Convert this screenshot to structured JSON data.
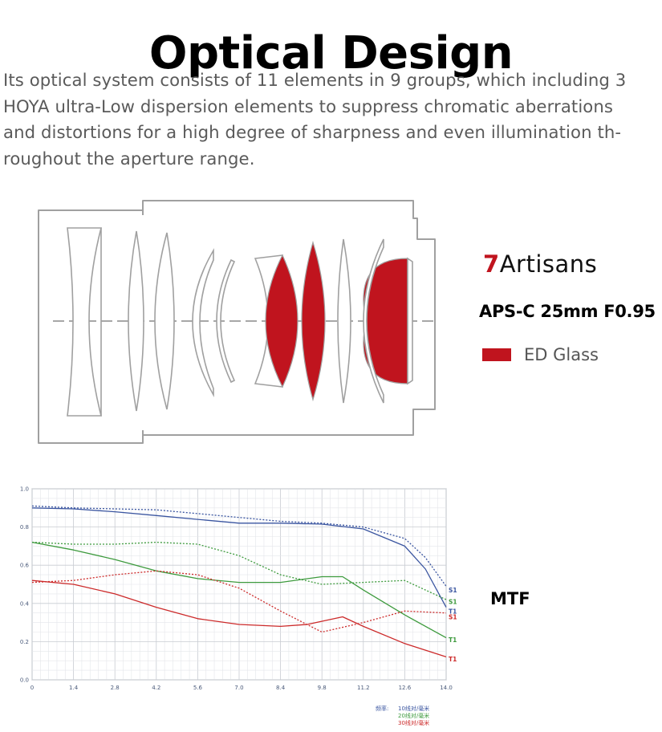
{
  "header": {
    "title": "Optical Design",
    "intro_lines": [
      "Its optical system consists of 11 elements in 9 groups, which including 3",
      "HOYA ultra-Low dispersion elements to suppress chromatic aberrations",
      "and distortions for a high degree of sharpness and even illumination th-",
      "roughout the aperture range."
    ]
  },
  "brand": {
    "numeral": "7",
    "name": "Artisans"
  },
  "lens": {
    "model": "APS-C 25mm F0.95",
    "legend_label": "ED Glass",
    "ed_color": "#c0141e",
    "outline_color": "#9a9a9a"
  },
  "mtf": {
    "label": "MTF",
    "footer_prefix": "频率:",
    "footer_items": [
      {
        "text": "10线对/毫米",
        "color": "#3a55a0"
      },
      {
        "text": "20线对/毫米",
        "color": "#3d9a3d"
      },
      {
        "text": "30线对/毫米",
        "color": "#cc2a2a"
      }
    ]
  },
  "chart_data": {
    "type": "line",
    "xlim": [
      0,
      14.0
    ],
    "ylim": [
      0,
      1.0
    ],
    "x_ticks": [
      "0",
      "1.4",
      "2.8",
      "4.2",
      "5.6",
      "7.0",
      "8.4",
      "9.8",
      "11.2",
      "12.6",
      "14.0"
    ],
    "y_ticks": [
      "0.0",
      "0.2",
      "0.4",
      "0.6",
      "0.8",
      "1.0"
    ],
    "grid": true,
    "series": [
      {
        "name": "S1",
        "color": "#3a55a0",
        "dashed": false,
        "x": [
          0,
          1.4,
          2.8,
          4.2,
          5.6,
          7.0,
          8.4,
          9.8,
          11.2,
          12.6,
          13.3,
          14.0
        ],
        "y": [
          0.9,
          0.895,
          0.88,
          0.86,
          0.84,
          0.82,
          0.82,
          0.815,
          0.79,
          0.7,
          0.58,
          0.38
        ]
      },
      {
        "name": "T1",
        "color": "#3a55a0",
        "dashed": true,
        "x": [
          0,
          1.4,
          2.8,
          4.2,
          5.6,
          7.0,
          8.4,
          9.8,
          11.2,
          12.6,
          13.3,
          14.0
        ],
        "y": [
          0.91,
          0.9,
          0.895,
          0.89,
          0.87,
          0.85,
          0.83,
          0.82,
          0.8,
          0.74,
          0.64,
          0.49
        ]
      },
      {
        "name": "S1",
        "color": "#3d9a3d",
        "dashed": false,
        "x": [
          0,
          1.4,
          2.8,
          4.2,
          5.6,
          7.0,
          8.4,
          9.8,
          10.5,
          11.2,
          12.6,
          14.0
        ],
        "y": [
          0.72,
          0.68,
          0.63,
          0.57,
          0.53,
          0.51,
          0.51,
          0.54,
          0.54,
          0.47,
          0.34,
          0.22
        ]
      },
      {
        "name": "T1",
        "color": "#3d9a3d",
        "dashed": true,
        "x": [
          0,
          1.4,
          2.8,
          4.2,
          5.6,
          7.0,
          8.4,
          9.8,
          11.2,
          12.6,
          14.0
        ],
        "y": [
          0.72,
          0.71,
          0.71,
          0.72,
          0.71,
          0.65,
          0.55,
          0.5,
          0.51,
          0.52,
          0.42
        ]
      },
      {
        "name": "S1",
        "color": "#cc2a2a",
        "dashed": false,
        "x": [
          0,
          1.4,
          2.8,
          4.2,
          5.6,
          7.0,
          8.4,
          9.3,
          10.5,
          11.2,
          12.6,
          14.0
        ],
        "y": [
          0.52,
          0.5,
          0.45,
          0.38,
          0.32,
          0.29,
          0.28,
          0.29,
          0.33,
          0.28,
          0.19,
          0.12
        ]
      },
      {
        "name": "T1",
        "color": "#cc2a2a",
        "dashed": true,
        "x": [
          0,
          1.4,
          2.8,
          4.2,
          5.6,
          7.0,
          8.4,
          9.8,
          11.2,
          12.6,
          14.0
        ],
        "y": [
          0.51,
          0.52,
          0.55,
          0.57,
          0.55,
          0.48,
          0.36,
          0.25,
          0.3,
          0.36,
          0.35
        ]
      }
    ],
    "end_labels": [
      {
        "text": "S1",
        "color": "#3a55a0",
        "y": 0.47
      },
      {
        "text": "S1",
        "color": "#3d9a3d",
        "y": 0.41
      },
      {
        "text": "T1",
        "color": "#3a55a0",
        "y": 0.36
      },
      {
        "text": "S1",
        "color": "#cc2a2a",
        "y": 0.33
      },
      {
        "text": "T1",
        "color": "#3d9a3d",
        "y": 0.21
      },
      {
        "text": "T1",
        "color": "#cc2a2a",
        "y": 0.11
      }
    ]
  }
}
